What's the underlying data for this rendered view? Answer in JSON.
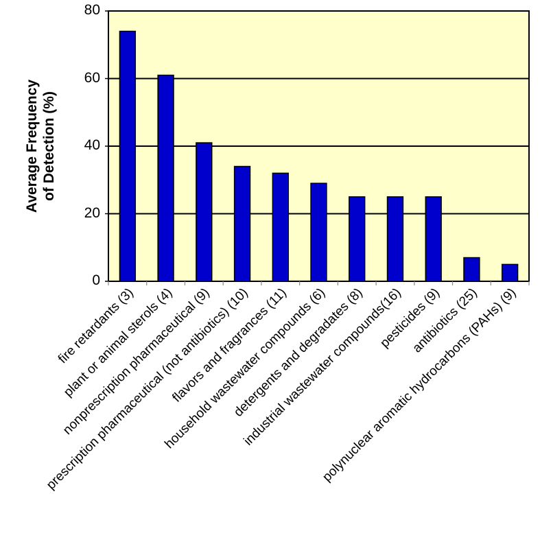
{
  "chart_data": {
    "type": "bar",
    "title": "",
    "xlabel": "",
    "ylabel": "Average Frequency\nof Detection (%)",
    "ylabel_lines": [
      "Average Frequency",
      "of Detection (%)"
    ],
    "ylim": [
      0,
      80
    ],
    "yticks": [
      0,
      20,
      40,
      60,
      80
    ],
    "grid": true,
    "legend": null,
    "categories": [
      "fire retardants (3)",
      "plant or animal sterols (4)",
      "nonprescription pharmaceutical (9)",
      "prescription pharmaceutical (not antibiotics) (10)",
      "flavors and fragrances (11)",
      "household wastewater compounds (6)",
      "detergents and degradates (8)",
      "industrial wastewater compounds(16)",
      "pesticides (9)",
      "antibiotics (25)",
      "polynuclear aromatic hydrocarbons (PAHs) (9)"
    ],
    "values": [
      74,
      61,
      41,
      34,
      32,
      29,
      25,
      25,
      25,
      7,
      5
    ],
    "colors": {
      "bar": "#0000CC",
      "plot_background": "#FFFFCC",
      "gridline": "#000000"
    }
  }
}
